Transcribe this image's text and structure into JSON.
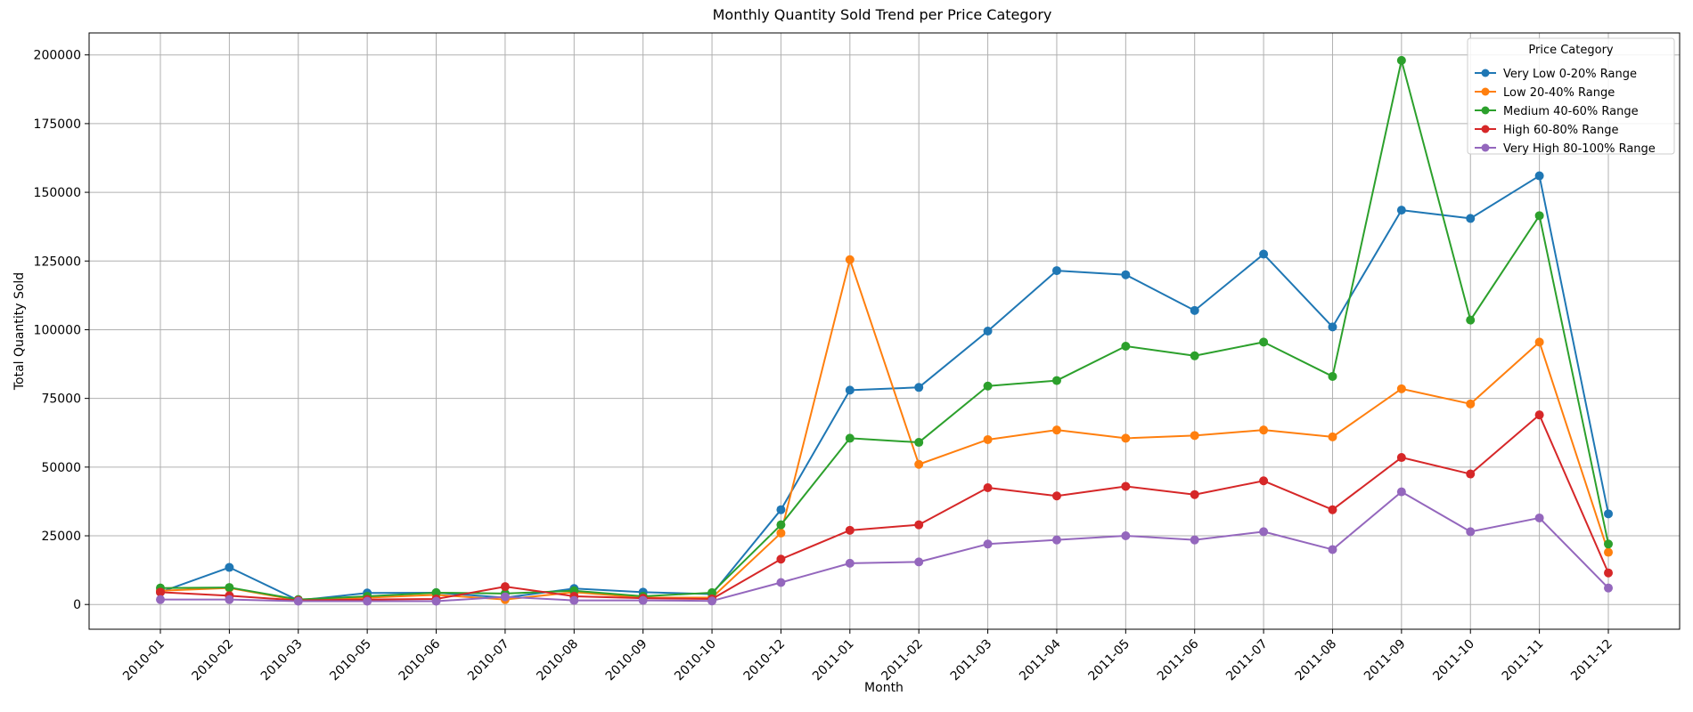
{
  "chart_data": {
    "type": "line",
    "title": "Monthly Quantity Sold Trend per Price Category",
    "xlabel": "Month",
    "ylabel": "Total Quantity Sold",
    "categories": [
      "2010-01",
      "2010-02",
      "2010-03",
      "2010-05",
      "2010-06",
      "2010-07",
      "2010-08",
      "2010-09",
      "2010-10",
      "2010-12",
      "2011-01",
      "2011-02",
      "2011-03",
      "2011-04",
      "2011-05",
      "2011-06",
      "2011-07",
      "2011-08",
      "2011-09",
      "2011-10",
      "2011-11",
      "2011-12"
    ],
    "ylim": [
      -9000,
      208000
    ],
    "yticks": [
      0,
      25000,
      50000,
      75000,
      100000,
      125000,
      150000,
      175000,
      200000
    ],
    "ytick_labels": [
      "0",
      "25000",
      "50000",
      "75000",
      "100000",
      "125000",
      "150000",
      "175000",
      "200000"
    ],
    "grid": true,
    "legend": {
      "title": "Price Category",
      "placement": "top-right"
    },
    "series": [
      {
        "name": "Very Low 0-20% Range",
        "color": "#1f77b4",
        "values": [
          4500,
          13500,
          1500,
          4200,
          4300,
          2500,
          5800,
          4500,
          3800,
          34500,
          78000,
          79000,
          99500,
          121500,
          120000,
          107000,
          127500,
          101000,
          143500,
          140500,
          156000,
          33000
        ]
      },
      {
        "name": "Low 20-40% Range",
        "color": "#ff7f0e",
        "values": [
          5000,
          6000,
          1500,
          2500,
          3500,
          1800,
          4500,
          2500,
          2500,
          26000,
          125500,
          51000,
          60000,
          63500,
          60500,
          61500,
          63500,
          61000,
          78500,
          73000,
          95500,
          19000
        ]
      },
      {
        "name": "Medium 40-60% Range",
        "color": "#2ca02c",
        "values": [
          6000,
          6200,
          1800,
          3000,
          4300,
          4000,
          5000,
          3000,
          4300,
          29000,
          60500,
          59000,
          79500,
          81500,
          94000,
          90500,
          95500,
          83000,
          198000,
          103500,
          141500,
          22000
        ]
      },
      {
        "name": "High 60-80% Range",
        "color": "#d62728",
        "values": [
          4500,
          3200,
          1500,
          1800,
          2000,
          6500,
          3000,
          2300,
          2000,
          16500,
          27000,
          29000,
          42500,
          39500,
          43000,
          40000,
          45000,
          34500,
          53500,
          47500,
          69000,
          11500
        ]
      },
      {
        "name": "Very High 80-100% Range",
        "color": "#9467bd",
        "values": [
          1800,
          1800,
          1200,
          1200,
          1200,
          2800,
          1500,
          1500,
          1300,
          8000,
          15000,
          15500,
          22000,
          23500,
          25000,
          23500,
          26500,
          20000,
          41000,
          26500,
          31500,
          6000
        ]
      }
    ]
  }
}
